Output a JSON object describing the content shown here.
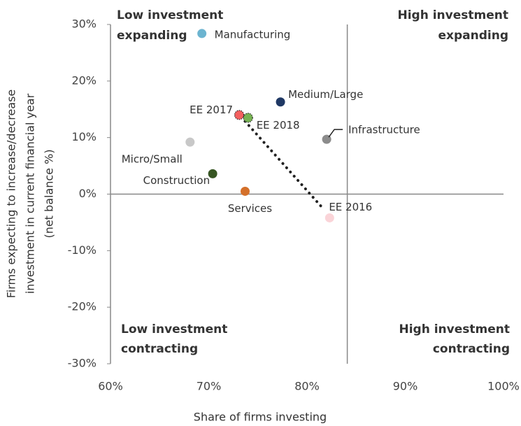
{
  "chart_data": {
    "type": "scatter",
    "xlabel": "Share of firms investing",
    "ylabel": [
      "Firms expecting to increase/decrease",
      "investment in current financial year",
      "(net balance %)"
    ],
    "xlim": [
      60,
      100
    ],
    "xticks": [
      {
        "value": 60,
        "label": "60%"
      },
      {
        "value": 70,
        "label": "70%"
      },
      {
        "value": 80,
        "label": "80%"
      },
      {
        "value": 90,
        "label": "90%"
      },
      {
        "value": 100,
        "label": "100%"
      }
    ],
    "ylim": [
      -30,
      30
    ],
    "yticks": [
      {
        "value": -30,
        "label": "-30%"
      },
      {
        "value": -20,
        "label": "-20%"
      },
      {
        "value": -10,
        "label": "-10%"
      },
      {
        "value": 0,
        "label": "0%"
      },
      {
        "value": 10,
        "label": "10%"
      },
      {
        "value": 20,
        "label": "20%"
      },
      {
        "value": 30,
        "label": "30%"
      }
    ],
    "x_divider": 84.1,
    "y_divider": 0,
    "quadrant_labels": {
      "top_left": [
        "Low investment",
        "expanding"
      ],
      "top_right": [
        "High investment",
        "expanding"
      ],
      "bottom_left": [
        "Low investment",
        "contracting"
      ],
      "bottom_right": [
        "High investment",
        "contracting"
      ]
    },
    "points": [
      {
        "name": "Manufacturing",
        "x": 69.3,
        "y": 28.4,
        "color": "#6cb4d0"
      },
      {
        "name": "Medium/Large",
        "x": 77.3,
        "y": 16.3,
        "color": "#1f3864"
      },
      {
        "name": "EE 2017",
        "x": 73.1,
        "y": 14.0,
        "color": "#f4605f"
      },
      {
        "name": "EE 2018",
        "x": 74.0,
        "y": 13.5,
        "color": "#77b352"
      },
      {
        "name": "Infrastructure",
        "x": 82.0,
        "y": 9.7,
        "color": "#8c8c8c"
      },
      {
        "name": "Micro/Small",
        "x": 68.1,
        "y": 9.2,
        "color": "#c8c8c8"
      },
      {
        "name": "Construction",
        "x": 70.4,
        "y": 3.6,
        "color": "#375623"
      },
      {
        "name": "Services",
        "x": 73.7,
        "y": 0.5,
        "color": "#d4702a"
      },
      {
        "name": "EE 2016",
        "x": 82.3,
        "y": -4.2,
        "color": "#fad4d8"
      }
    ]
  }
}
